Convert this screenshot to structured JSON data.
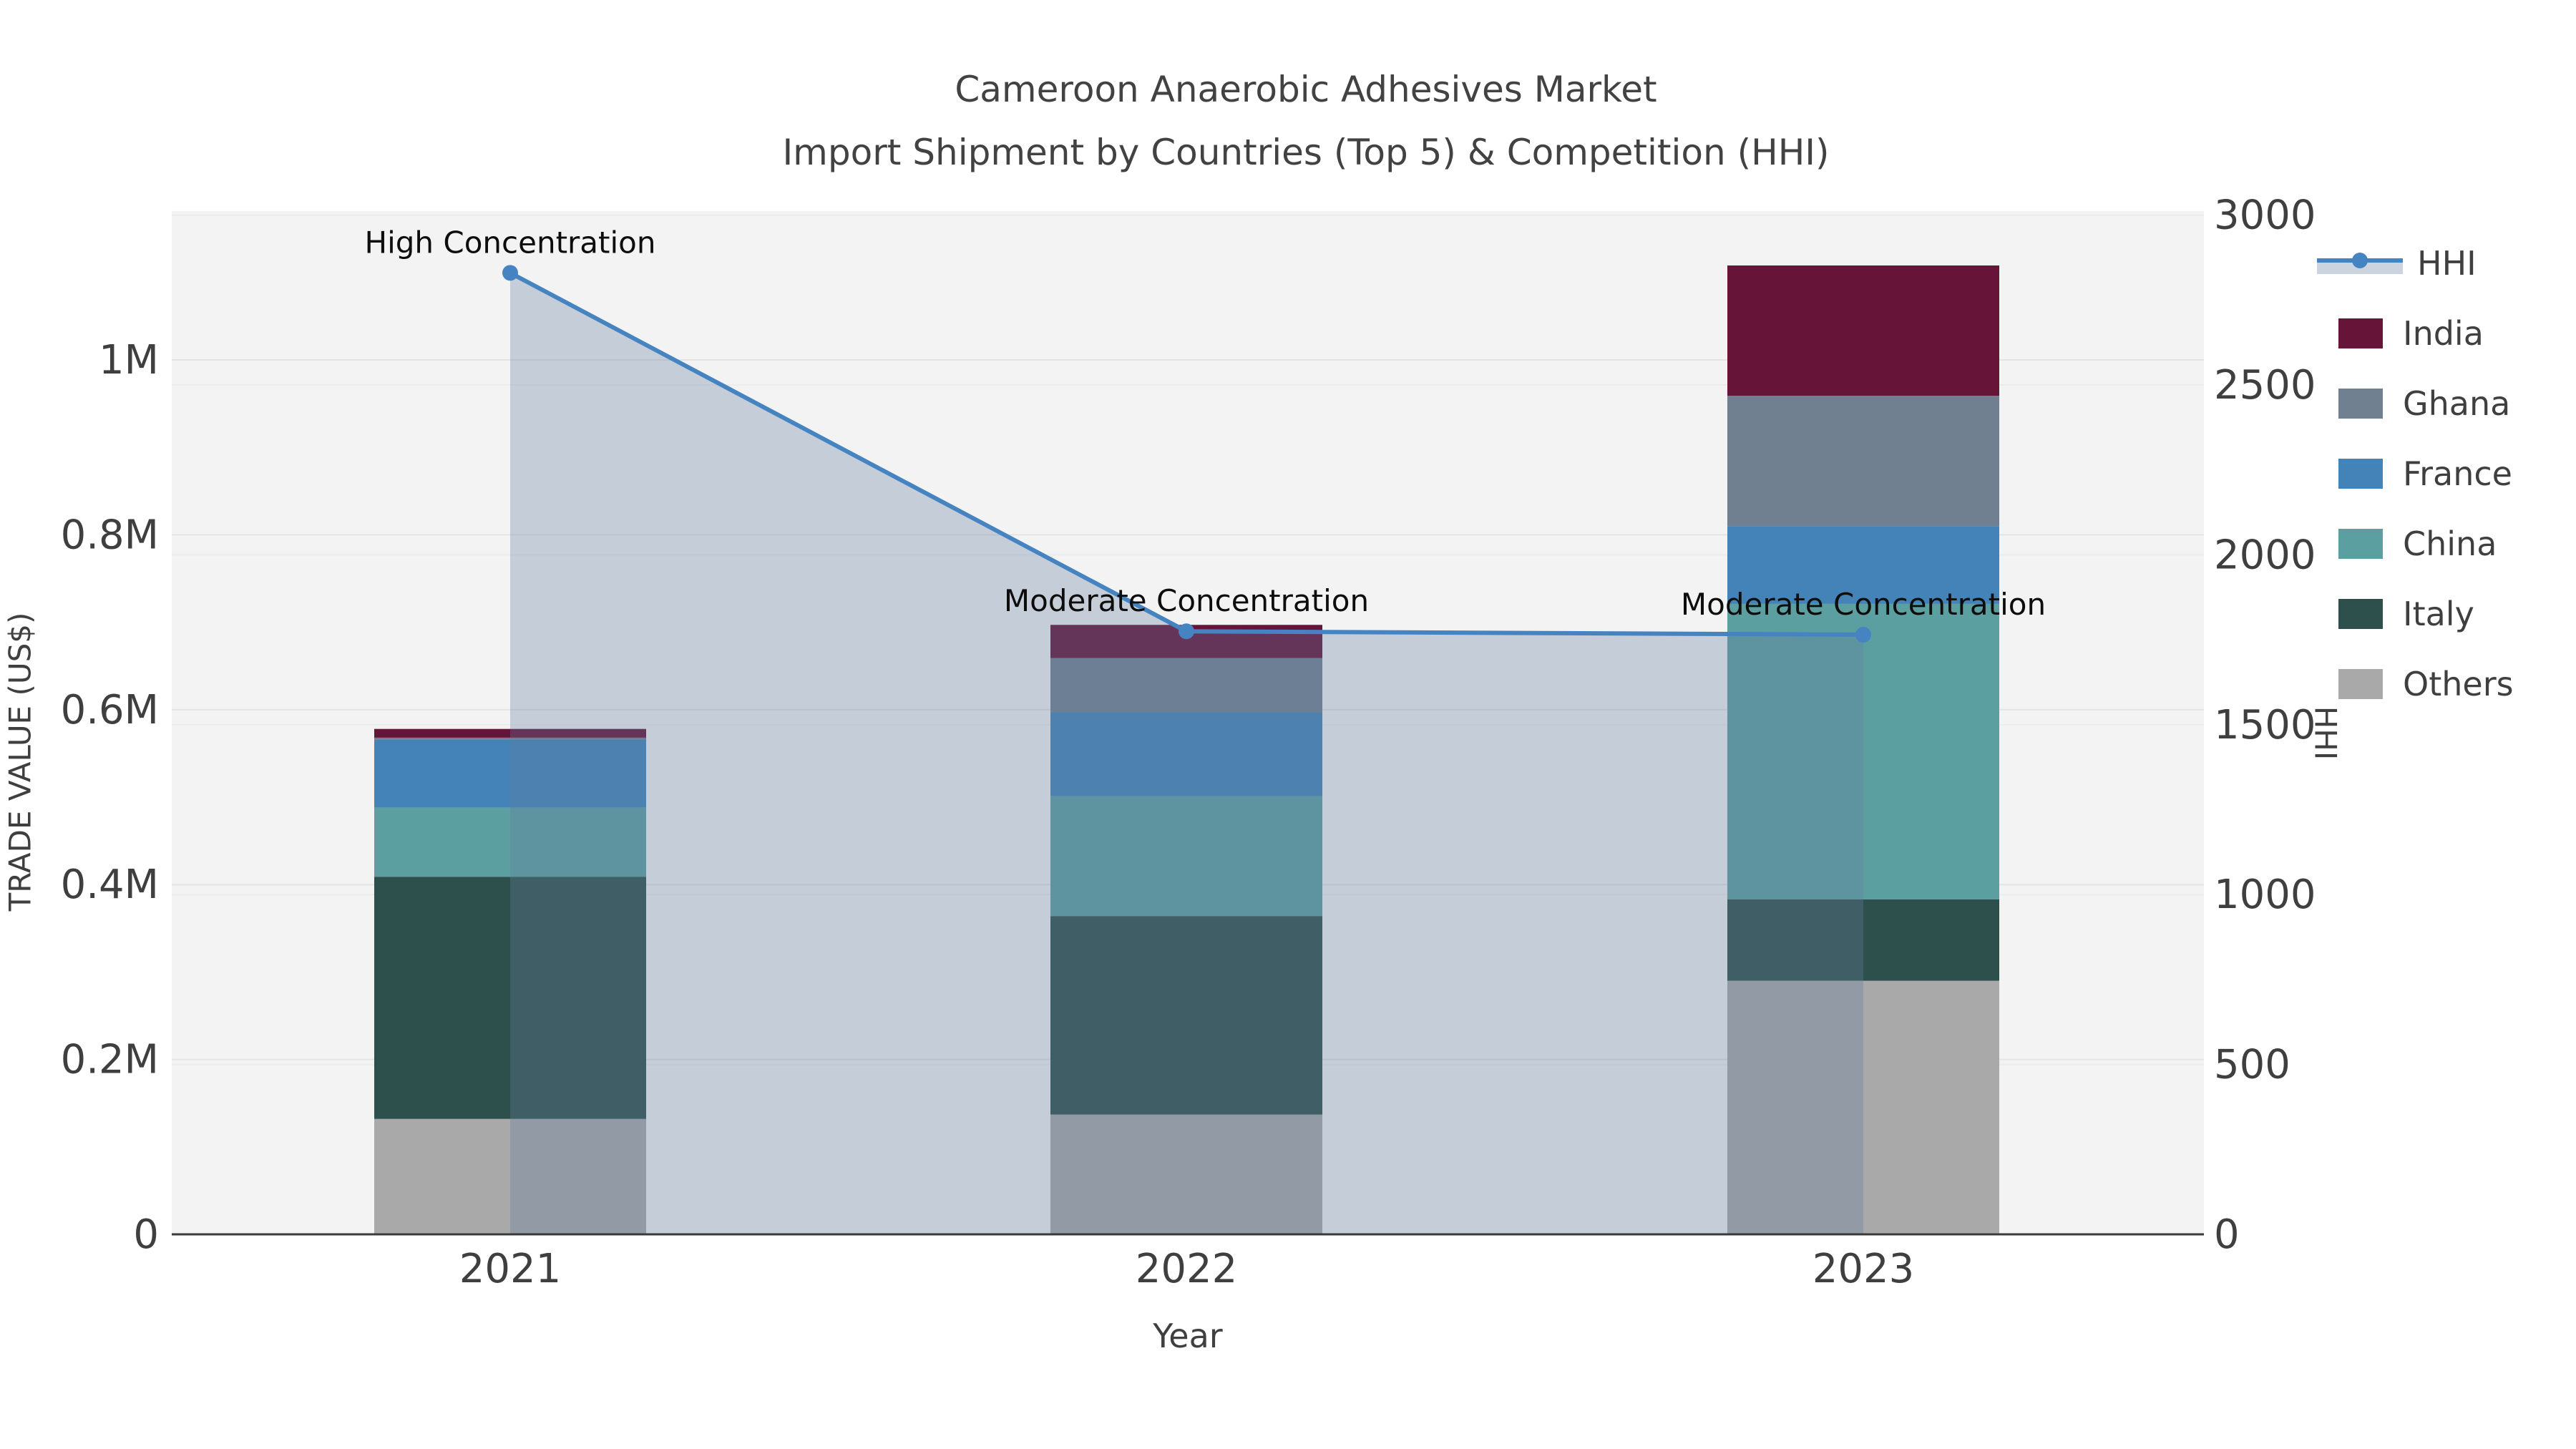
{
  "title": {
    "line1": "Cameroon Anaerobic Adhesives Market",
    "line2": "Import Shipment by Countries (Top 5) & Competition (HHI)"
  },
  "axes": {
    "x": {
      "title": "Year",
      "ticks": [
        "2021",
        "2022",
        "2023"
      ]
    },
    "y_left": {
      "title": "TRADE VALUE (US$)",
      "ticks": [
        {
          "label": "0",
          "value": 0
        },
        {
          "label": "0.2M",
          "value": 200000
        },
        {
          "label": "0.4M",
          "value": 400000
        },
        {
          "label": "0.6M",
          "value": 600000
        },
        {
          "label": "0.8M",
          "value": 800000
        },
        {
          "label": "1M",
          "value": 1000000
        }
      ]
    },
    "y_right": {
      "title": "HHI",
      "ticks": [
        {
          "label": "0",
          "value": 0
        },
        {
          "label": "500",
          "value": 500
        },
        {
          "label": "1000",
          "value": 1000
        },
        {
          "label": "1500",
          "value": 1500
        },
        {
          "label": "2000",
          "value": 2000
        },
        {
          "label": "2500",
          "value": 2500
        },
        {
          "label": "3000",
          "value": 3000
        }
      ]
    }
  },
  "chart_data": {
    "type": "bar+line combo (stacked bars left axis, HHI line right axis)",
    "categories": [
      "2021",
      "2022",
      "2023"
    ],
    "bar_series": [
      {
        "name": "Others",
        "color": "#a9a9a9",
        "values": [
          132000,
          137000,
          290000
        ]
      },
      {
        "name": "Italy",
        "color": "#2e504c",
        "values": [
          277000,
          227000,
          93000
        ]
      },
      {
        "name": "China",
        "color": "#5b9fa0",
        "values": [
          79000,
          137000,
          338000
        ]
      },
      {
        "name": "France",
        "color": "#4383b8",
        "values": [
          78000,
          96000,
          89000
        ]
      },
      {
        "name": "Ghana",
        "color": "#708090",
        "values": [
          2000,
          62000,
          149000
        ]
      },
      {
        "name": "India",
        "color": "#661438",
        "values": [
          10000,
          38000,
          149000
        ]
      }
    ],
    "bar_totals": [
      578000,
      697000,
      1108000
    ],
    "line_series": {
      "name": "HHI",
      "color": "#4584c1",
      "area_fill": "rgba(100,125,160,0.32)",
      "values": [
        2830,
        1775,
        1765
      ]
    },
    "annotations": [
      {
        "text": "High Concentration",
        "category": "2021",
        "hhi": 2830
      },
      {
        "text": "Moderate Concentration",
        "category": "2022",
        "hhi": 1775
      },
      {
        "text": "Moderate Concentration",
        "category": "2023",
        "hhi": 1765
      }
    ],
    "legend": [
      "HHI",
      "India",
      "Ghana",
      "France",
      "China",
      "Italy",
      "Others"
    ],
    "layout_hints": {
      "legend_position": "right",
      "grid": true,
      "plot_background": "#f3f3f3",
      "gridline_color": "#e4e4e4",
      "axis_line_color": "#3a3a3a",
      "tick_text_color": "#3f3f3f",
      "annotation_color": "#0d0d0d",
      "y_left_range": [
        0,
        1170000
      ],
      "y_right_range": [
        0,
        3000
      ]
    }
  }
}
